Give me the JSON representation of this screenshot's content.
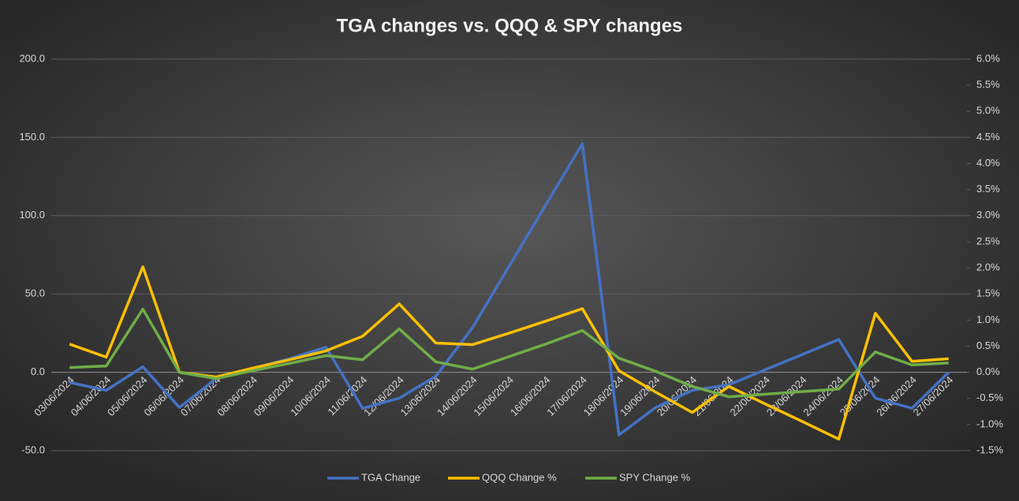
{
  "chart_data": {
    "type": "line",
    "title": "TGA changes vs. QQQ & SPY changes",
    "categories": [
      "03/06/2024",
      "04/06/2024",
      "05/06/2024",
      "06/06/2024",
      "07/06/2024",
      "08/06/2024",
      "09/06/2024",
      "10/06/2024",
      "11/06/2024",
      "12/06/2024",
      "13/06/2024",
      "14/06/2024",
      "15/06/2024",
      "16/06/2024",
      "17/06/2024",
      "18/06/2024",
      "19/06/2024",
      "20/06/2024",
      "21/06/2024",
      "22/06/2024",
      "23/06/2024",
      "24/06/2024",
      "25/06/2024",
      "26/06/2024",
      "27/06/2024"
    ],
    "series": [
      {
        "name": "TGA Change",
        "color": "#4472c4",
        "values": [
          -6.5,
          -11.5,
          3.5,
          -22.5,
          -4,
          2.3,
          8.7,
          16,
          -23,
          -16.5,
          -2.5,
          28.5,
          67.7,
          106.8,
          146,
          -40,
          -22.5,
          -11.5,
          -8,
          1.7,
          11.3,
          21,
          -16.5,
          -23,
          0
        ]
      },
      {
        "name": "QQQ Change %",
        "color": "#ffc000",
        "axis": "y2",
        "values": [
          0.54,
          0.29,
          2.02,
          0.0,
          -0.09,
          0.08,
          0.24,
          0.41,
          0.69,
          1.31,
          0.56,
          0.53,
          0.75,
          0.98,
          1.22,
          0.03,
          -0.38,
          -0.77,
          -0.27,
          -0.61,
          -0.94,
          -1.28,
          1.13,
          0.21,
          0.26
        ]
      },
      {
        "name": "SPY Change %",
        "color": "#70ad47",
        "axis": "y2",
        "values": [
          0.09,
          0.12,
          1.21,
          0.0,
          -0.12,
          0.03,
          0.17,
          0.32,
          0.24,
          0.83,
          0.2,
          0.06,
          0.3,
          0.54,
          0.8,
          0.27,
          0.02,
          -0.27,
          -0.47,
          -0.42,
          -0.37,
          -0.32,
          0.39,
          0.14,
          0.18
        ]
      }
    ],
    "ylim": [
      -50,
      200
    ],
    "yticks": [
      {
        "value": -50,
        "label": "-50.0"
      },
      {
        "value": 0,
        "label": "0.0"
      },
      {
        "value": 50,
        "label": "50.0"
      },
      {
        "value": 100,
        "label": "100.0"
      },
      {
        "value": 150,
        "label": "150.0"
      },
      {
        "value": 200,
        "label": "200.0"
      }
    ],
    "y2lim": [
      -1.5,
      6.0
    ],
    "y2ticks": [
      {
        "value": -1.5,
        "label": "-1.5%"
      },
      {
        "value": -1.0,
        "label": "-1.0%"
      },
      {
        "value": -0.5,
        "label": "-0.5%"
      },
      {
        "value": 0,
        "label": "0.0%"
      },
      {
        "value": 0.5,
        "label": "0.5%"
      },
      {
        "value": 1.0,
        "label": "1.0%"
      },
      {
        "value": 1.5,
        "label": "1.5%"
      },
      {
        "value": 2.0,
        "label": "2.0%"
      },
      {
        "value": 2.5,
        "label": "2.5%"
      },
      {
        "value": 3.0,
        "label": "3.0%"
      },
      {
        "value": 3.5,
        "label": "3.5%"
      },
      {
        "value": 4.0,
        "label": "4.0%"
      },
      {
        "value": 4.5,
        "label": "4.5%"
      },
      {
        "value": 5.0,
        "label": "5.0%"
      },
      {
        "value": 5.5,
        "label": "5.5%"
      },
      {
        "value": 6.0,
        "label": "6.0%"
      }
    ],
    "grid": true,
    "legend": "bottom"
  }
}
